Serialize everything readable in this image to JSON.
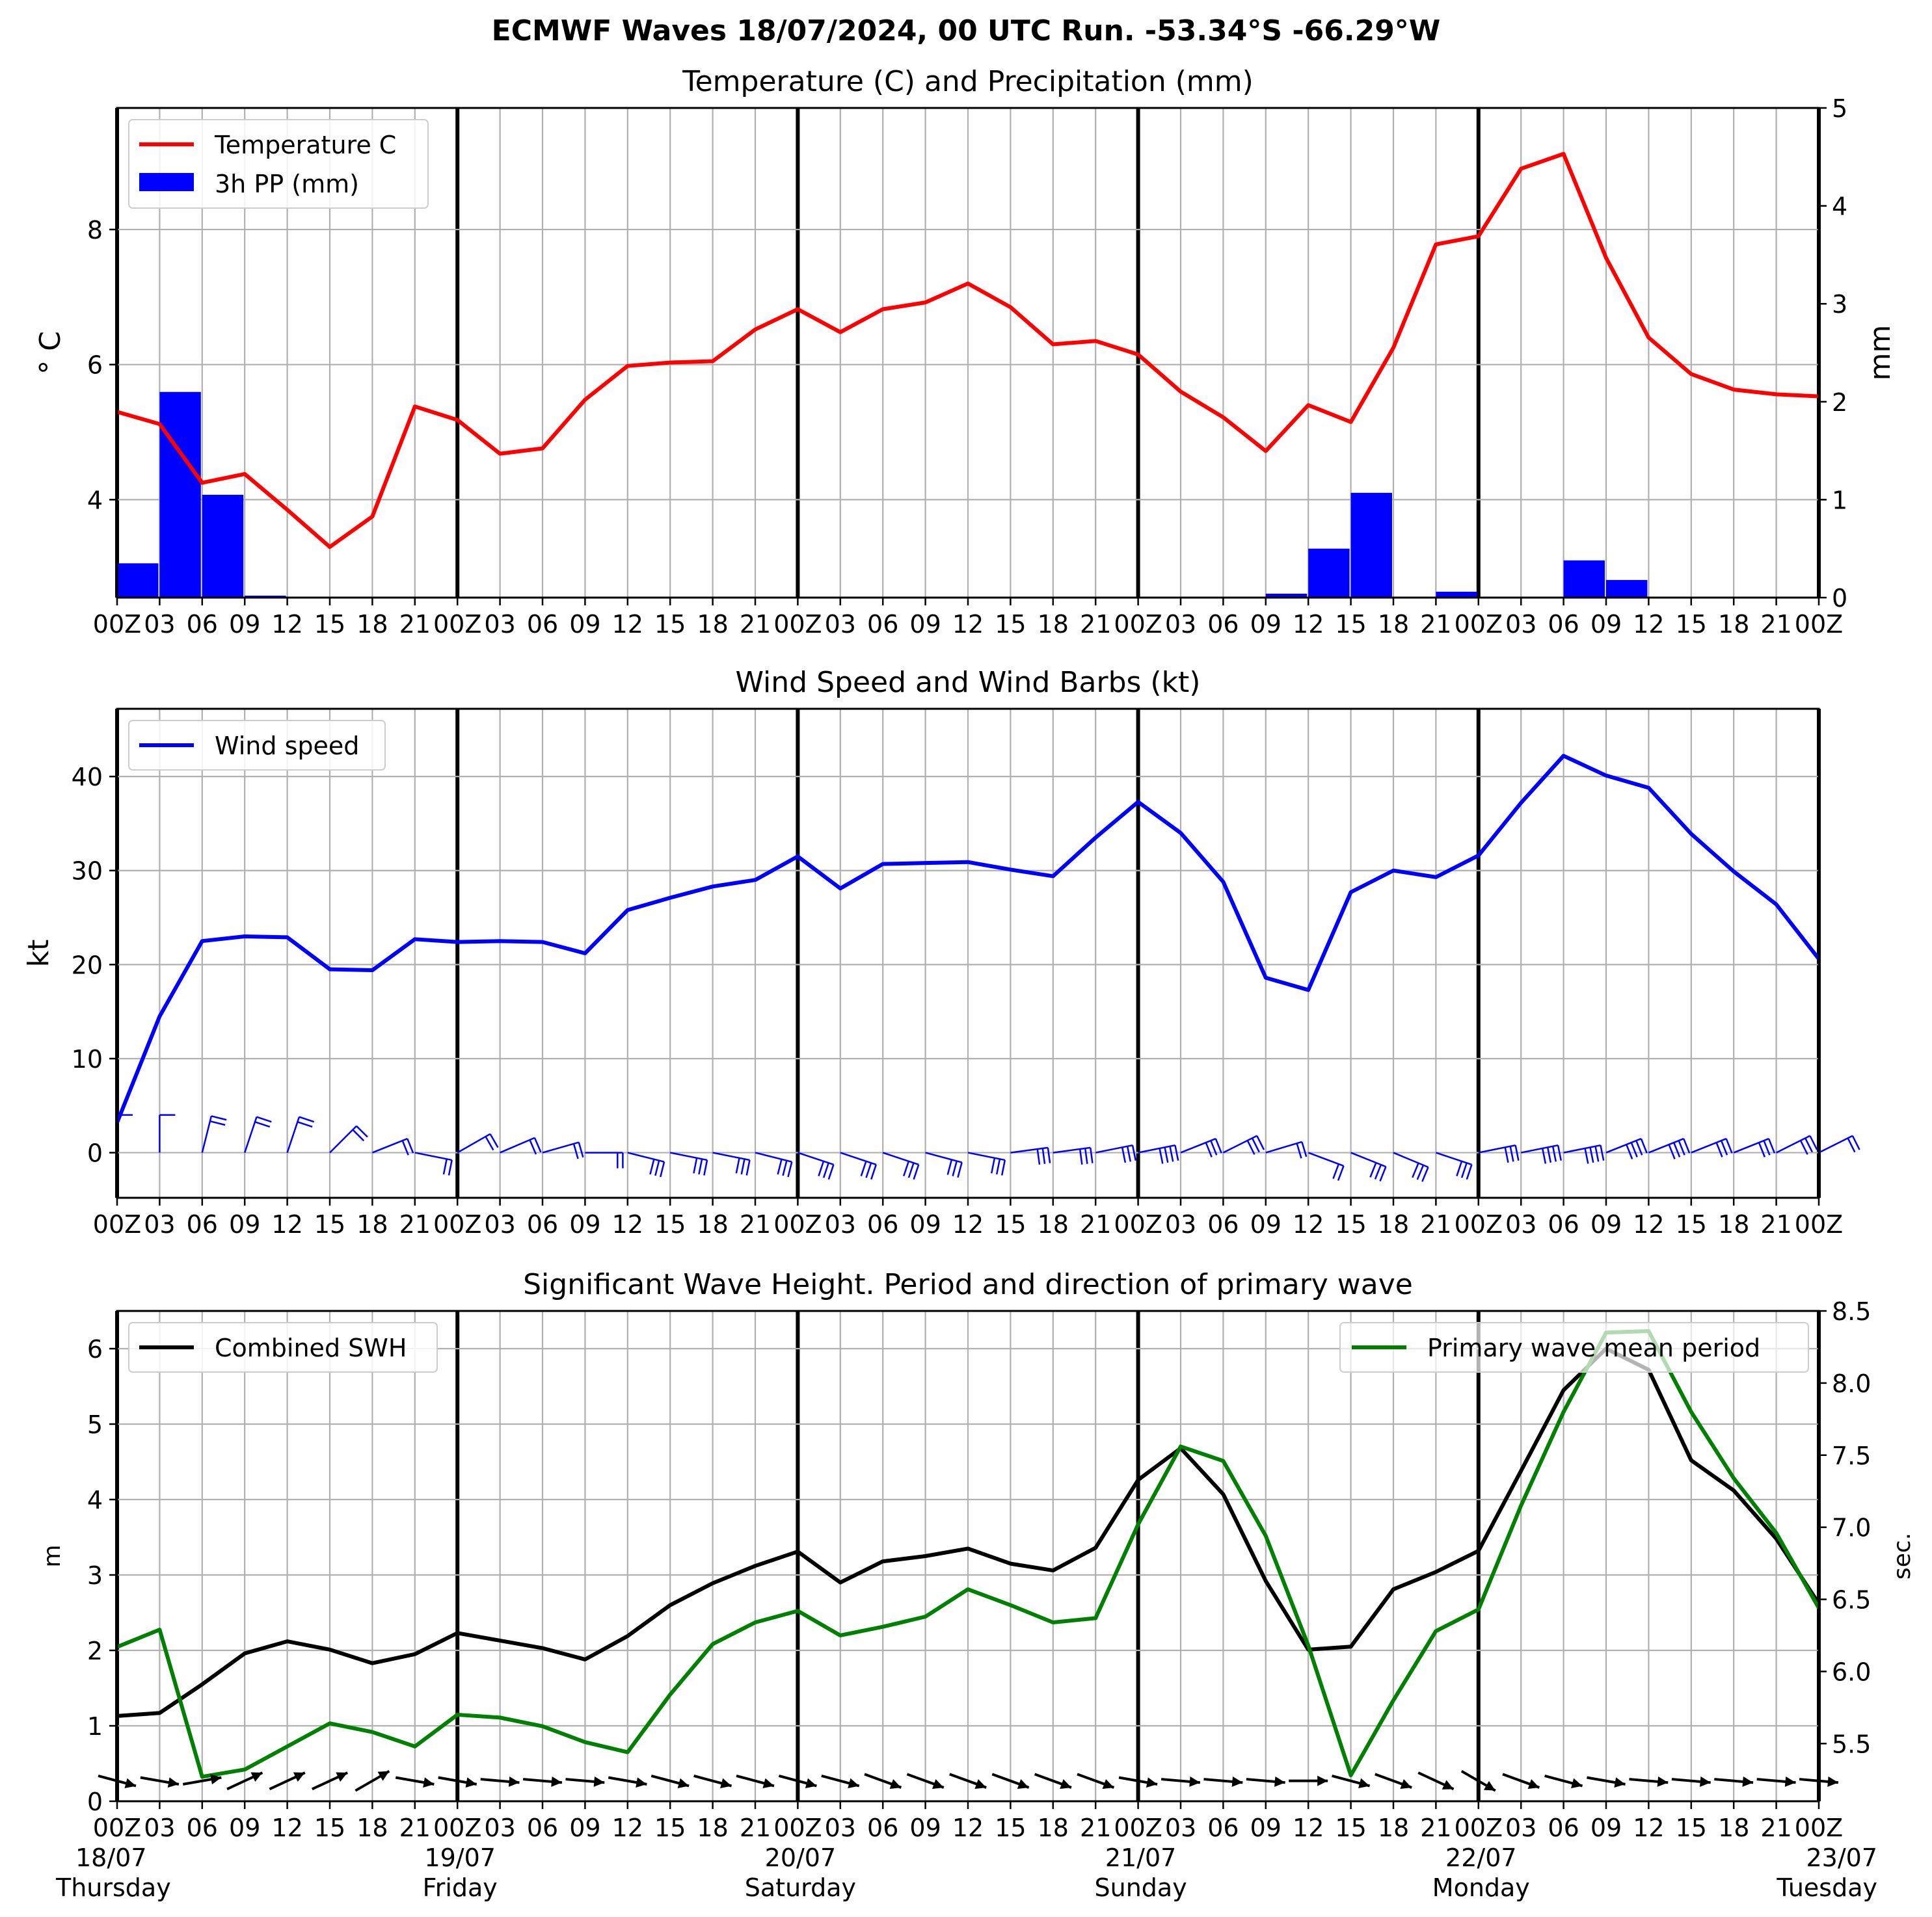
{
  "page_title": "ECMWF Waves 18/07/2024, 00 UTC Run. -53.34°S -66.29°W",
  "colors": {
    "temperature": "#ff0000",
    "precip": "#0000ff",
    "wind": "#0000ff",
    "swh": "#000000",
    "period": "#008000",
    "grid": "#b0b0b0"
  },
  "x_tick_labels": [
    "00Z",
    "03",
    "06",
    "09",
    "12",
    "15",
    "18",
    "21",
    "00Z",
    "03",
    "06",
    "09",
    "12",
    "15",
    "18",
    "21",
    "00Z",
    "03",
    "06",
    "09",
    "12",
    "15",
    "18",
    "21",
    "00Z",
    "03",
    "06",
    "09",
    "12",
    "15",
    "18",
    "21",
    "00Z",
    "03",
    "06",
    "09",
    "12",
    "15",
    "18",
    "21",
    "00Z"
  ],
  "day_labels": [
    {
      "date": "18/07",
      "weekday": "Thursday"
    },
    {
      "date": "19/07",
      "weekday": "Friday"
    },
    {
      "date": "20/07",
      "weekday": "Saturday"
    },
    {
      "date": "21/07",
      "weekday": "Sunday"
    },
    {
      "date": "22/07",
      "weekday": "Monday"
    },
    {
      "date": "23/07",
      "weekday": "Tuesday"
    }
  ],
  "chart_data": [
    {
      "type": "line",
      "title": "Temperature (C) and Precipitation (mm)",
      "ylabel": "° C",
      "ylabel_right": "mm",
      "ylim": [
        2.55,
        9.8
      ],
      "ylim_right": [
        0,
        5
      ],
      "yticks": [
        4,
        6,
        8
      ],
      "yticks_right": [
        0,
        1,
        2,
        3,
        4,
        5
      ],
      "xlim": [
        0,
        120
      ],
      "x_hours": [
        0,
        3,
        6,
        9,
        12,
        15,
        18,
        21,
        24,
        27,
        30,
        33,
        36,
        39,
        42,
        45,
        48,
        51,
        54,
        57,
        60,
        63,
        66,
        69,
        72,
        75,
        78,
        81,
        84,
        87,
        90,
        93,
        96,
        99,
        102,
        105,
        108,
        111,
        114,
        117,
        120
      ],
      "legend": [
        "Temperature C",
        "3h PP (mm)"
      ],
      "legend_position": "top-left",
      "grid": true,
      "series": [
        {
          "name": "Temperature C",
          "type": "line",
          "values": [
            5.3,
            5.12,
            4.25,
            4.38,
            3.85,
            3.3,
            3.75,
            5.38,
            5.18,
            4.68,
            4.76,
            5.48,
            5.98,
            6.03,
            6.05,
            6.52,
            6.82,
            6.48,
            6.82,
            6.92,
            7.2,
            6.85,
            6.3,
            6.35,
            6.15,
            5.6,
            5.22,
            4.72,
            5.4,
            5.15,
            6.25,
            7.78,
            7.9,
            8.9,
            9.12,
            7.58,
            6.4,
            5.86,
            5.63,
            5.56,
            5.53
          ]
        },
        {
          "name": "3h PP (mm)",
          "type": "bar",
          "values": [
            0.35,
            2.1,
            1.05,
            0.02,
            0,
            0,
            0,
            0,
            0,
            0,
            0,
            0,
            0,
            0,
            0.01,
            0,
            0,
            0,
            0,
            0,
            0.01,
            0,
            0,
            0,
            0,
            0,
            0,
            0.04,
            0.5,
            1.07,
            0,
            0.06,
            0,
            0.01,
            0.38,
            0.18,
            0,
            0,
            0,
            0
          ]
        }
      ]
    },
    {
      "type": "line",
      "title": "Wind Speed and Wind Barbs (kt)",
      "ylabel": "kt",
      "ylim": [
        -4.8,
        47.2
      ],
      "yticks": [
        0,
        10,
        20,
        30,
        40
      ],
      "xlim": [
        0,
        120
      ],
      "legend": [
        "Wind speed"
      ],
      "legend_position": "top-left",
      "grid": true,
      "series": [
        {
          "name": "Wind speed",
          "values": [
            3.2,
            14.5,
            22.5,
            23.0,
            22.9,
            19.5,
            19.4,
            22.7,
            22.4,
            22.5,
            22.4,
            21.2,
            25.8,
            27.1,
            28.3,
            29.0,
            31.5,
            28.1,
            30.7,
            30.8,
            30.9,
            30.1,
            29.4,
            33.5,
            37.3,
            34.0,
            28.8,
            18.6,
            17.3,
            27.7,
            30.0,
            29.3,
            31.6,
            37.2,
            42.2,
            40.1,
            38.8,
            33.9,
            29.9,
            26.4,
            20.6
          ]
        }
      ],
      "barbs": [
        {
          "u": 0,
          "v": -5
        },
        {
          "u": 0,
          "v": -8
        },
        {
          "u": -2,
          "v": -8
        },
        {
          "u": -3,
          "v": -9
        },
        {
          "u": -3,
          "v": -9
        },
        {
          "u": -5,
          "v": -5
        },
        {
          "u": -5,
          "v": -2
        },
        {
          "u": -5,
          "v": 1
        },
        {
          "u": -7,
          "v": -4
        },
        {
          "u": -7,
          "v": -3
        },
        {
          "u": -7,
          "v": -2
        },
        {
          "u": -8,
          "v": 0
        },
        {
          "u": -8,
          "v": 2
        },
        {
          "u": -10,
          "v": 2
        },
        {
          "u": -10,
          "v": 2
        },
        {
          "u": -12,
          "v": 3
        },
        {
          "u": -12,
          "v": 4
        },
        {
          "u": -15,
          "v": 5
        },
        {
          "u": -15,
          "v": 5
        },
        {
          "u": -15,
          "v": 4
        },
        {
          "u": -15,
          "v": 3
        },
        {
          "u": -15,
          "v": -2
        },
        {
          "u": -15,
          "v": -2
        },
        {
          "u": -15,
          "v": -3
        },
        {
          "u": -15,
          "v": -3
        },
        {
          "u": -15,
          "v": -6
        },
        {
          "u": -12,
          "v": -6
        },
        {
          "u": -10,
          "v": -3
        },
        {
          "u": -8,
          "v": 3
        },
        {
          "u": -10,
          "v": 4
        },
        {
          "u": -12,
          "v": 5
        },
        {
          "u": -12,
          "v": 4
        },
        {
          "u": -15,
          "v": -3
        },
        {
          "u": -15,
          "v": -3
        },
        {
          "u": -15,
          "v": -3
        },
        {
          "u": -15,
          "v": -6
        },
        {
          "u": -15,
          "v": -6
        },
        {
          "u": -15,
          "v": -6
        },
        {
          "u": -15,
          "v": -6
        },
        {
          "u": -12,
          "v": -6
        },
        {
          "u": -12,
          "v": -6
        }
      ]
    },
    {
      "type": "line",
      "title": "Significant Wave Height. Period and direction of primary wave",
      "ylabel": "m",
      "ylabel_right": "sec.",
      "ylim": [
        0,
        6.5
      ],
      "ylim_right": [
        5.1,
        8.5
      ],
      "yticks": [
        0,
        1,
        2,
        3,
        4,
        5,
        6
      ],
      "yticks_right": [
        5.5,
        6.0,
        6.5,
        7.0,
        7.5,
        8.0,
        8.5
      ],
      "xlim": [
        0,
        120
      ],
      "legend": [
        "Combined SWH",
        "Primary wave mean period"
      ],
      "legend_position": "top-left / top-right",
      "grid": true,
      "series": [
        {
          "name": "Combined SWH",
          "axis": "left",
          "values": [
            1.13,
            1.17,
            1.55,
            1.96,
            2.12,
            2.01,
            1.83,
            1.95,
            2.23,
            2.13,
            2.03,
            1.88,
            2.19,
            2.6,
            2.89,
            3.12,
            3.31,
            2.9,
            3.18,
            3.25,
            3.35,
            3.15,
            3.06,
            3.36,
            4.26,
            4.68,
            4.07,
            2.92,
            2.01,
            2.05,
            2.81,
            3.04,
            3.32,
            4.38,
            5.45,
            6.0,
            5.72,
            4.52,
            4.12,
            3.48,
            2.62
          ]
        },
        {
          "name": "Primary wave mean period",
          "axis": "right",
          "values": [
            6.17,
            6.29,
            5.27,
            5.32,
            5.48,
            5.64,
            5.58,
            5.48,
            5.7,
            5.68,
            5.62,
            5.51,
            5.44,
            5.84,
            6.19,
            6.34,
            6.42,
            6.25,
            6.31,
            6.38,
            6.57,
            6.46,
            6.34,
            6.37,
            7.02,
            7.56,
            7.46,
            6.94,
            6.18,
            5.28,
            5.8,
            6.28,
            6.43,
            7.15,
            7.8,
            8.35,
            8.36,
            7.8,
            7.34,
            6.96,
            6.44
          ]
        }
      ],
      "wave_direction_deg": [
        285,
        280,
        260,
        245,
        245,
        245,
        240,
        280,
        280,
        275,
        275,
        275,
        280,
        285,
        285,
        285,
        285,
        285,
        290,
        290,
        290,
        290,
        290,
        290,
        280,
        275,
        275,
        275,
        270,
        285,
        290,
        295,
        300,
        290,
        285,
        280,
        275,
        275,
        275,
        275,
        275
      ]
    }
  ]
}
